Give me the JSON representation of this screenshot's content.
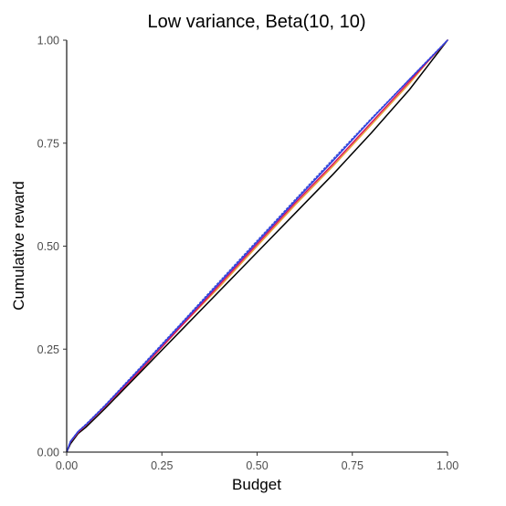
{
  "chart_data": {
    "type": "line",
    "title": "Low variance, Beta(10, 10)",
    "xlabel": "Budget",
    "ylabel": "Cumulative reward",
    "xlim": [
      0,
      1
    ],
    "ylim": [
      0,
      1
    ],
    "x_ticks": [
      "0.00",
      "0.25",
      "0.50",
      "0.75",
      "1.00"
    ],
    "y_ticks": [
      "0.00",
      "0.25",
      "0.50",
      "0.75",
      "1.00"
    ],
    "grid": false,
    "legend": "none",
    "series": [
      {
        "color": "#000000",
        "style": "solid",
        "points": [
          [
            0,
            0
          ],
          [
            0.01,
            0.02
          ],
          [
            0.03,
            0.045
          ],
          [
            0.05,
            0.06
          ],
          [
            0.1,
            0.105
          ],
          [
            0.2,
            0.2
          ],
          [
            0.3,
            0.295
          ],
          [
            0.4,
            0.39
          ],
          [
            0.5,
            0.485
          ],
          [
            0.6,
            0.58
          ],
          [
            0.7,
            0.675
          ],
          [
            0.8,
            0.775
          ],
          [
            0.9,
            0.88
          ],
          [
            0.95,
            0.94
          ],
          [
            1,
            1
          ]
        ]
      },
      {
        "color": "#e8a33a",
        "style": "solid",
        "points": [
          [
            0,
            0
          ],
          [
            0.01,
            0.025
          ],
          [
            0.03,
            0.048
          ],
          [
            0.05,
            0.065
          ],
          [
            0.1,
            0.11
          ],
          [
            0.2,
            0.205
          ],
          [
            0.3,
            0.305
          ],
          [
            0.4,
            0.4
          ],
          [
            0.5,
            0.5
          ],
          [
            0.6,
            0.6
          ],
          [
            0.7,
            0.695
          ],
          [
            0.8,
            0.795
          ],
          [
            0.9,
            0.895
          ],
          [
            0.95,
            0.95
          ],
          [
            1,
            1
          ]
        ]
      },
      {
        "color": "#d6135a",
        "style": "solid",
        "points": [
          [
            0,
            0
          ],
          [
            0.01,
            0.025
          ],
          [
            0.03,
            0.048
          ],
          [
            0.05,
            0.065
          ],
          [
            0.1,
            0.11
          ],
          [
            0.2,
            0.205
          ],
          [
            0.3,
            0.305
          ],
          [
            0.4,
            0.405
          ],
          [
            0.5,
            0.505
          ],
          [
            0.6,
            0.605
          ],
          [
            0.7,
            0.7
          ],
          [
            0.8,
            0.8
          ],
          [
            0.9,
            0.9
          ],
          [
            0.95,
            0.95
          ],
          [
            1,
            1
          ]
        ]
      },
      {
        "color": "#4a5ad8",
        "style": "dotted",
        "points": [
          [
            0,
            0
          ],
          [
            0.01,
            0.026
          ],
          [
            0.03,
            0.05
          ],
          [
            0.05,
            0.067
          ],
          [
            0.1,
            0.113
          ],
          [
            0.2,
            0.212
          ],
          [
            0.3,
            0.312
          ],
          [
            0.4,
            0.413
          ],
          [
            0.5,
            0.513
          ],
          [
            0.6,
            0.613
          ],
          [
            0.7,
            0.712
          ],
          [
            0.8,
            0.81
          ],
          [
            0.9,
            0.905
          ],
          [
            0.95,
            0.953
          ],
          [
            1,
            1
          ]
        ]
      },
      {
        "color": "#2c3ee0",
        "style": "solid",
        "points": [
          [
            0,
            0
          ],
          [
            0.01,
            0.026
          ],
          [
            0.03,
            0.05
          ],
          [
            0.05,
            0.066
          ],
          [
            0.1,
            0.112
          ],
          [
            0.2,
            0.21
          ],
          [
            0.3,
            0.31
          ],
          [
            0.4,
            0.41
          ],
          [
            0.5,
            0.51
          ],
          [
            0.6,
            0.61
          ],
          [
            0.7,
            0.708
          ],
          [
            0.8,
            0.808
          ],
          [
            0.9,
            0.905
          ],
          [
            0.95,
            0.952
          ],
          [
            1,
            1
          ]
        ]
      }
    ]
  }
}
